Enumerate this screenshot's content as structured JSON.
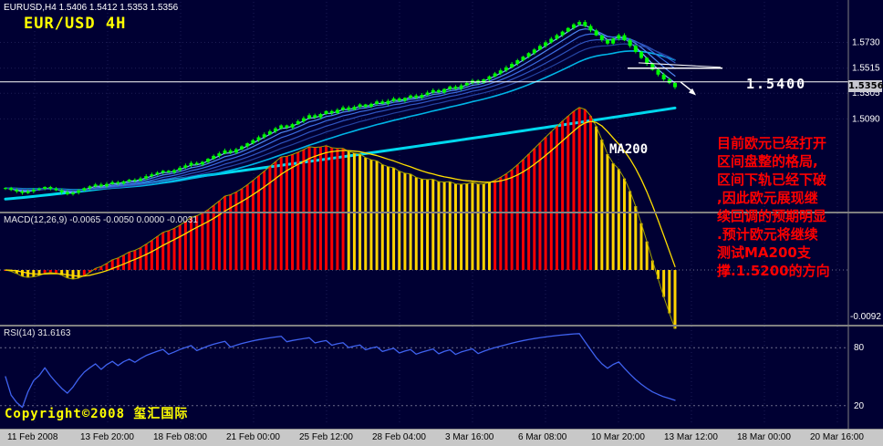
{
  "window": {
    "quote_line": "EURUSD,H4 1.5406 1.5412 1.5353 1.5356",
    "chart_label": "EUR/USD 4H"
  },
  "main_chart": {
    "price_axis_labels": [
      "1.5730",
      "1.5515",
      "1.5305",
      "1.5090"
    ],
    "current_price": "1.5356",
    "level_label": "1.5400",
    "ma200_label": "MA200",
    "note_text": "目前欧元已经打开\n区间盘整的格局,\n区间下轨已经下破\n,因此欧元展现继\n续回调的预期明显\n.预计欧元将继续\n测试MA200支\n撑.1.5200的方向"
  },
  "macd_panel": {
    "label": "MACD(12,26,9) -0.0065 -0.0050 0.0000 -0.0031",
    "axis_label_bottom": "-0.0092"
  },
  "rsi_panel": {
    "label": "RSI(14) 31.6163",
    "level_labels": [
      "80",
      "20"
    ],
    "copyright": "Copyright©2008 玺汇国际"
  },
  "time_axis": {
    "labels": [
      "11 Feb 2008",
      "13 Feb 20:00",
      "18 Feb 08:00",
      "21 Feb 00:00",
      "25 Feb 12:00",
      "28 Feb 04:00",
      "3 Mar 16:00",
      "6 Mar 08:00",
      "10 Mar 20:00",
      "13 Mar 12:00",
      "18 Mar 00:00",
      "20 Mar 16:00"
    ]
  },
  "colors": {
    "background": "#000033",
    "candle": "#00ff00",
    "ma_fan": [
      "#7fb2ff",
      "#4f86f2",
      "#3b6ce0",
      "#2f55c0",
      "#2443a0"
    ],
    "ma_mid": "#00b4e6",
    "ma200": "#00d8ee",
    "object_white": "#ffffff",
    "macd_bar_red": "#ff0000",
    "macd_bar_yellow": "#ffd400",
    "macd_line": "#a0a000",
    "macd_signal": "#ffdf00",
    "rsi_line": "#3f62f0",
    "note_red": "#ff0000",
    "title_yellow": "#ffff00",
    "axis_bg": "#c8c8c8",
    "grid": "#1d1d55",
    "separator": "#808080"
  },
  "chart_data": {
    "type": "candlestick",
    "title": "EUR/USD 4H",
    "symbol": "EURUSD",
    "timeframe": "H4",
    "quote_ohlc": [
      1.5406,
      1.5412,
      1.5353,
      1.5356
    ],
    "current_close": 1.5356,
    "ylim": [
      1.433,
      1.607
    ],
    "price_axis": [
      1.573,
      1.5515,
      1.5305,
      1.509
    ],
    "closes": [
      1.4512,
      1.4496,
      1.4483,
      1.447,
      1.4484,
      1.4498,
      1.4506,
      1.4521,
      1.4507,
      1.4493,
      1.4477,
      1.4461,
      1.4473,
      1.4492,
      1.4511,
      1.4526,
      1.4541,
      1.4527,
      1.4546,
      1.4561,
      1.455,
      1.4568,
      1.4581,
      1.4573,
      1.4592,
      1.4611,
      1.4626,
      1.4641,
      1.4656,
      1.4644,
      1.4661,
      1.4682,
      1.4701,
      1.4722,
      1.4709,
      1.4731,
      1.4756,
      1.4781,
      1.4802,
      1.4826,
      1.4809,
      1.4836,
      1.4861,
      1.4886,
      1.4912,
      1.4937,
      1.4961,
      1.4986,
      1.5011,
      1.5036,
      1.5018,
      1.5046,
      1.5071,
      1.5096,
      1.5121,
      1.5103,
      1.5131,
      1.5156,
      1.5139,
      1.5166,
      1.5186,
      1.5168,
      1.5191,
      1.5211,
      1.5193,
      1.5216,
      1.5236,
      1.5218,
      1.5241,
      1.5261,
      1.5243,
      1.5266,
      1.5286,
      1.5268,
      1.5291,
      1.5311,
      1.5331,
      1.5313,
      1.5341,
      1.5361,
      1.5343,
      1.5371,
      1.5391,
      1.5411,
      1.5393,
      1.5421,
      1.5446,
      1.5471,
      1.5496,
      1.5521,
      1.5551,
      1.5581,
      1.5611,
      1.5641,
      1.5671,
      1.5701,
      1.5731,
      1.5761,
      1.5791,
      1.5821,
      1.5851,
      1.5881,
      1.5901,
      1.5868,
      1.5831,
      1.5789,
      1.5751,
      1.5721,
      1.5761,
      1.5791,
      1.5748,
      1.5701,
      1.5651,
      1.5601,
      1.5551,
      1.5501,
      1.5461,
      1.5421,
      1.5391,
      1.5356
    ],
    "annotations": {
      "horizontal_level": 1.54,
      "resistance_segment_level": 1.5515,
      "down_arrow": true,
      "ma200_label": "MA200"
    },
    "indicators": {
      "ma_fan_periods": [
        3,
        6,
        10,
        15,
        21
      ],
      "ma_mid_period": 30,
      "ma200_period": 200,
      "macd": {
        "fast": 12,
        "slow": 26,
        "signal": 9,
        "values_shown": [
          -0.0065,
          -0.005,
          0.0,
          -0.0031
        ],
        "axis_min_shown": -0.0092
      },
      "rsi": {
        "period": 14,
        "current": 31.6163,
        "levels": [
          80,
          20
        ]
      }
    },
    "x_labels": [
      "11 Feb 2008",
      "13 Feb 20:00",
      "18 Feb 08:00",
      "21 Feb 00:00",
      "25 Feb 12:00",
      "28 Feb 04:00",
      "3 Mar 16:00",
      "6 Mar 08:00",
      "10 Mar 20:00",
      "13 Mar 12:00",
      "18 Mar 00:00",
      "20 Mar 16:00"
    ]
  }
}
